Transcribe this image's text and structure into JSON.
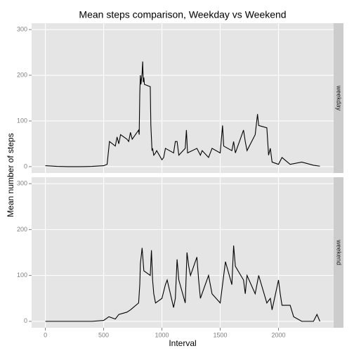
{
  "chart_data": {
    "type": "line",
    "title": "Mean steps comparison, Weekday vs Weekend",
    "xlabel": "Interval",
    "ylabel": "Mean number of steps",
    "xlim": [
      -118,
      2473
    ],
    "xticks": [
      0,
      500,
      1000,
      1500,
      2000
    ],
    "ylim": [
      -14,
      314
    ],
    "yticks": [
      0,
      100,
      200,
      300
    ],
    "grid": true,
    "series": [
      {
        "name": "weekday",
        "color": "#000000",
        "x": [
          0,
          100,
          200,
          300,
          400,
          500,
          530,
          550,
          600,
          615,
          630,
          645,
          700,
          715,
          730,
          745,
          800,
          805,
          810,
          815,
          820,
          830,
          835,
          840,
          845,
          850,
          900,
          905,
          915,
          920,
          930,
          945,
          955,
          1000,
          1015,
          1030,
          1100,
          1115,
          1130,
          1145,
          1200,
          1210,
          1220,
          1300,
          1330,
          1345,
          1400,
          1430,
          1500,
          1520,
          1530,
          1600,
          1615,
          1630,
          1700,
          1715,
          1730,
          1800,
          1820,
          1830,
          1900,
          1915,
          1930,
          1945,
          2000,
          2030,
          2100,
          2200,
          2300,
          2355
        ],
        "values": [
          2,
          0.5,
          0,
          0,
          0.5,
          2,
          5,
          55,
          45,
          65,
          50,
          70,
          60,
          55,
          75,
          60,
          80,
          70,
          160,
          200,
          180,
          205,
          230,
          185,
          195,
          180,
          175,
          90,
          35,
          40,
          25,
          30,
          35,
          15,
          20,
          40,
          30,
          55,
          55,
          25,
          40,
          80,
          30,
          40,
          25,
          35,
          20,
          40,
          30,
          90,
          45,
          35,
          55,
          30,
          80,
          55,
          35,
          70,
          115,
          90,
          85,
          25,
          40,
          10,
          5,
          20,
          5,
          10,
          3,
          1
        ]
      },
      {
        "name": "weekend",
        "color": "#000000",
        "x": [
          0,
          100,
          200,
          300,
          400,
          500,
          545,
          600,
          630,
          700,
          730,
          800,
          810,
          815,
          830,
          845,
          900,
          910,
          920,
          930,
          945,
          1000,
          1030,
          1045,
          1100,
          1115,
          1130,
          1145,
          1200,
          1215,
          1230,
          1245,
          1300,
          1315,
          1330,
          1400,
          1430,
          1500,
          1545,
          1600,
          1615,
          1630,
          1700,
          1715,
          1730,
          1800,
          1830,
          1900,
          1930,
          1945,
          2000,
          2015,
          2030,
          2100,
          2130,
          2200,
          2300,
          2330,
          2355
        ],
        "values": [
          0,
          0,
          0,
          0,
          0,
          2,
          10,
          5,
          15,
          20,
          25,
          40,
          80,
          125,
          160,
          110,
          100,
          155,
          90,
          60,
          40,
          50,
          80,
          90,
          30,
          50,
          135,
          90,
          40,
          150,
          120,
          100,
          140,
          90,
          50,
          100,
          60,
          40,
          130,
          80,
          165,
          120,
          90,
          60,
          100,
          60,
          100,
          40,
          50,
          25,
          90,
          60,
          35,
          35,
          10,
          0,
          0,
          15,
          0
        ]
      }
    ]
  }
}
